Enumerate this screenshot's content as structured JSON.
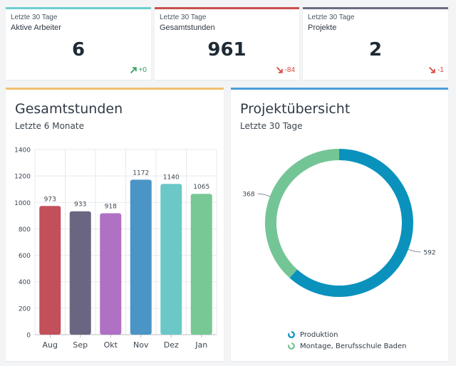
{
  "kpis": [
    {
      "period": "Letzte 30 Tage",
      "label": "Aktive Arbeiter",
      "value": "6",
      "trend": "+0",
      "direction": "up",
      "accent": "#6ccfd0",
      "trend_color": "#2e9e5b"
    },
    {
      "period": "Letzte 30 Tage",
      "label": "Gesamtstunden",
      "value": "961",
      "trend": "-84",
      "direction": "down",
      "accent": "#c9504d",
      "trend_color": "#d9453e"
    },
    {
      "period": "Letzte 30 Tage",
      "label": "Projekte",
      "value": "2",
      "trend": "-1",
      "direction": "down",
      "accent": "#6a6c82",
      "trend_color": "#d9453e"
    }
  ],
  "bar_panel": {
    "title": "Gesamtstunden",
    "subtitle": "Letzte 6 Monate",
    "accent": "#f0c070"
  },
  "donut_panel": {
    "title": "Projektübersicht",
    "subtitle": "Letzte 30 Tage",
    "accent": "#4a9fd8",
    "legend": [
      {
        "label": "Produktion",
        "color": "#0a92bd"
      },
      {
        "label": "Montage, Berufsschule Baden",
        "color": "#74c595"
      }
    ]
  },
  "chart_data": [
    {
      "type": "bar",
      "title": "Gesamtstunden",
      "subtitle": "Letzte 6 Monate",
      "categories": [
        "Aug",
        "Sep",
        "Okt",
        "Nov",
        "Dez",
        "Jan"
      ],
      "values": [
        973,
        933,
        918,
        1172,
        1140,
        1065
      ],
      "value_labels": [
        "973",
        "933",
        "918",
        "1172",
        "1140",
        "1065"
      ],
      "colors": [
        "#c2505a",
        "#6a6682",
        "#b070c4",
        "#4a95c5",
        "#6cc8c8",
        "#78c895"
      ],
      "ylim": [
        0,
        1400
      ],
      "yticks": [
        "0",
        "200",
        "400",
        "600",
        "800",
        "1000",
        "1200",
        "1400"
      ],
      "grid": true
    },
    {
      "type": "pie",
      "title": "Projektübersicht",
      "subtitle": "Letzte 30 Tage",
      "categories": [
        "Produktion",
        "Montage, Berufsschule Baden"
      ],
      "values": [
        592,
        368
      ],
      "value_labels": [
        "592",
        "368"
      ],
      "colors": [
        "#0a92bd",
        "#74c595"
      ],
      "legend": "bottom"
    }
  ]
}
